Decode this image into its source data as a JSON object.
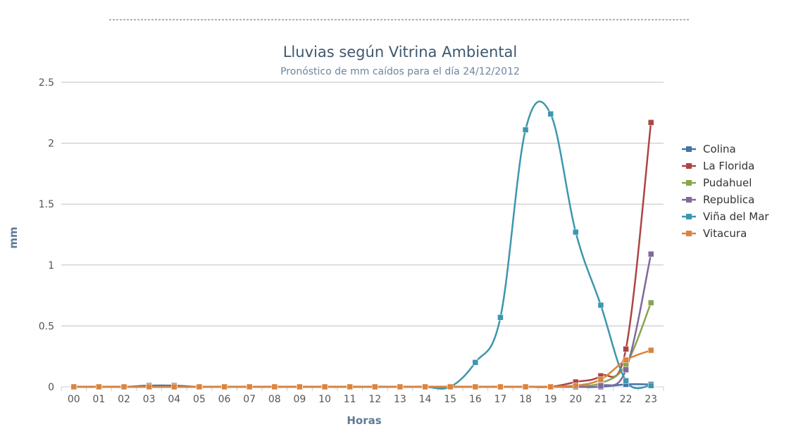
{
  "chart_data": {
    "type": "line",
    "title": "Lluvias según Vitrina Ambiental",
    "subtitle": "Pronóstico de mm caídos para el día 24/12/2012",
    "xlabel": "Horas",
    "ylabel": "mm",
    "categories": [
      "00",
      "01",
      "02",
      "03",
      "04",
      "05",
      "06",
      "07",
      "08",
      "09",
      "10",
      "11",
      "12",
      "13",
      "14",
      "15",
      "16",
      "17",
      "18",
      "19",
      "20",
      "21",
      "22",
      "23"
    ],
    "ylim": [
      0,
      2.5
    ],
    "yticks": [
      "0",
      "0.5",
      "1",
      "1.5",
      "2",
      "2.5"
    ],
    "grid": true,
    "legend_position": "right",
    "smooth": true,
    "series": [
      {
        "name": "Colina",
        "color": "#4572a7",
        "values": [
          0,
          0,
          0,
          0.01,
          0.01,
          0,
          0,
          0,
          0,
          0,
          0,
          0,
          0,
          0,
          0,
          0,
          0,
          0,
          0,
          0,
          0,
          0,
          0.02,
          0.02
        ]
      },
      {
        "name": "La Florida",
        "color": "#aa4643",
        "values": [
          0,
          0,
          0,
          0,
          0,
          0,
          0,
          0,
          0,
          0,
          0,
          0,
          0,
          0,
          0,
          0,
          0,
          0,
          0,
          0,
          0.04,
          0.09,
          0.31,
          2.17
        ]
      },
      {
        "name": "Pudahuel",
        "color": "#89a54e",
        "values": [
          0,
          0,
          0,
          0,
          0,
          0,
          0,
          0,
          0,
          0,
          0,
          0,
          0,
          0,
          0,
          0,
          0,
          0,
          0,
          0,
          0.01,
          0.03,
          0.18,
          0.69
        ]
      },
      {
        "name": "Republica",
        "color": "#80699b",
        "values": [
          0,
          0,
          0,
          0,
          0,
          0,
          0,
          0,
          0,
          0,
          0,
          0,
          0,
          0,
          0,
          0,
          0,
          0,
          0,
          0,
          0,
          0.01,
          0.14,
          1.09
        ]
      },
      {
        "name": "Viña del Mar",
        "color": "#3d96ae",
        "values": [
          0,
          0,
          0,
          0,
          0,
          0,
          0,
          0,
          0,
          0,
          0,
          0,
          0,
          0,
          0,
          0,
          0.2,
          0.57,
          2.11,
          2.24,
          1.27,
          0.67,
          0.05,
          0.01
        ]
      },
      {
        "name": "Vitacura",
        "color": "#db843d",
        "values": [
          0,
          0,
          0,
          0,
          0,
          0,
          0,
          0,
          0,
          0,
          0,
          0,
          0,
          0,
          0,
          0,
          0,
          0,
          0,
          0,
          0.01,
          0.06,
          0.22,
          0.3
        ]
      }
    ]
  }
}
